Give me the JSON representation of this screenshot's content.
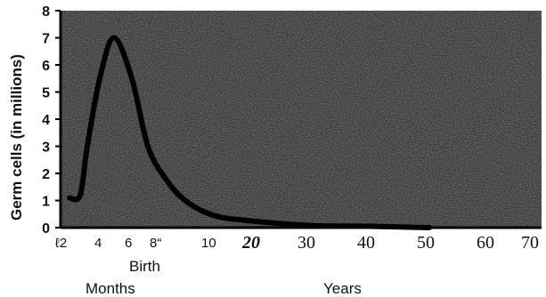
{
  "chart_data": {
    "type": "line",
    "title": "",
    "ylabel": "Germ cells (in millions)",
    "ylim": [
      0,
      8
    ],
    "yticks": [
      "0",
      "1",
      "2",
      "3",
      "4",
      "5",
      "6",
      "7",
      "8"
    ],
    "xticks_months": [
      "ℓ2",
      "4",
      "6",
      "8“"
    ],
    "xticks_mixed": [
      "10",
      "20"
    ],
    "xticks_years": [
      "30",
      "40",
      "50",
      "60",
      "70"
    ],
    "birth_label": "Birth",
    "months_label": "Months",
    "years_label": "Years",
    "series": [
      {
        "x_units": "months (gestation) then years",
        "points": [
          {
            "x": "2 mo",
            "y": 1.1
          },
          {
            "x": "2.5 mo",
            "y": 1.2
          },
          {
            "x": "3 mo",
            "y": 3.0
          },
          {
            "x": "4 mo",
            "y": 5.5
          },
          {
            "x": "5 mo",
            "y": 7.0
          },
          {
            "x": "6 mo",
            "y": 5.5
          },
          {
            "x": "7 mo",
            "y": 3.0
          },
          {
            "x": "8 mo",
            "y": 1.8
          },
          {
            "x": "birth",
            "y": 1.0
          },
          {
            "x": "10 yr",
            "y": 0.45
          },
          {
            "x": "20 yr",
            "y": 0.25
          },
          {
            "x": "30 yr",
            "y": 0.08
          },
          {
            "x": "40 yr",
            "y": 0.05
          },
          {
            "x": "50 yr",
            "y": 0.0
          }
        ]
      }
    ],
    "background": "#3a3a3a",
    "line_color": "#000000"
  }
}
